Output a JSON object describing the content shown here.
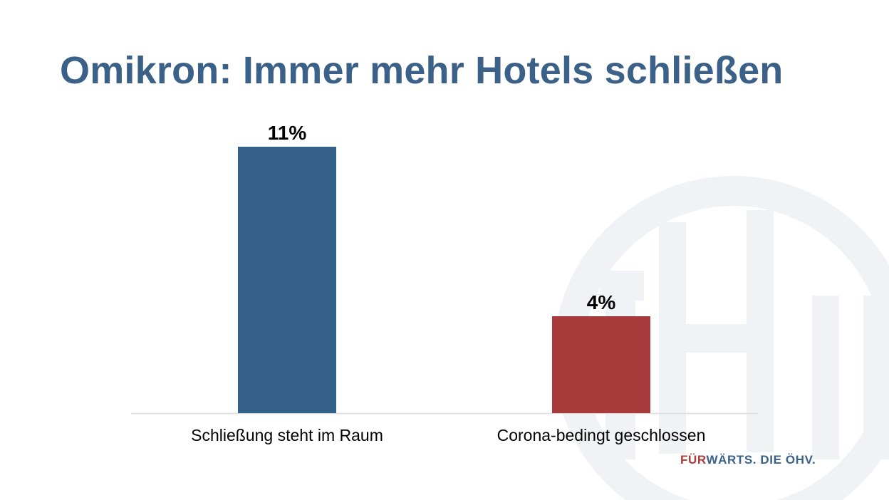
{
  "slide": {
    "title": "Omikron: Immer mehr Hotels schließen",
    "brand": {
      "part1": "FÜR",
      "part2": "WÄRTS. DIE ÖHV."
    },
    "watermark": {
      "icon": "oehv-logo-watermark",
      "text": "ÖHV"
    }
  },
  "colors": {
    "title": "#3b6189",
    "bar1": "#35608a",
    "bar2": "#a93a3c",
    "axis": "#d9d9d9",
    "watermark": "#f1f2f5",
    "brand_red": "#ad3a3c",
    "brand_blue": "#3b6189"
  },
  "chart_data": {
    "type": "bar",
    "categories": [
      "Schließung steht im Raum",
      "Corona-bedingt geschlossen"
    ],
    "values": [
      11,
      4
    ],
    "value_labels": [
      "11%",
      "4%"
    ],
    "bar_colors": [
      "#35608a",
      "#a93a3c"
    ],
    "ylim": [
      0,
      12
    ],
    "grid": false,
    "legend": "none"
  }
}
